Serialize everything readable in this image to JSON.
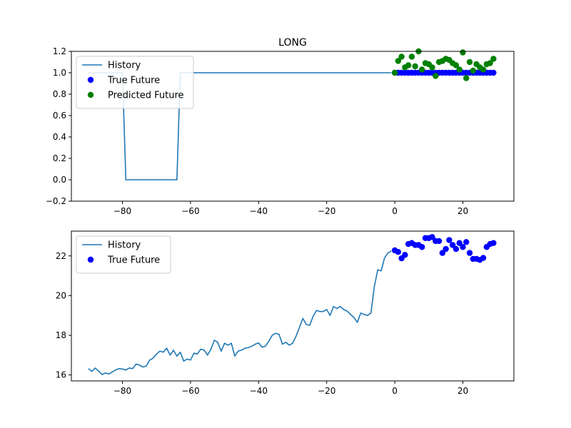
{
  "figure": {
    "title": "LONG"
  },
  "chart_data": [
    {
      "type": "line",
      "title": "LONG",
      "xlabel": "",
      "ylabel": "",
      "xlim": [
        -95,
        35
      ],
      "ylim": [
        -0.2,
        1.2
      ],
      "xticks": [
        -80,
        -60,
        -40,
        -20,
        0,
        20
      ],
      "yticks": [
        -0.2,
        0.0,
        0.2,
        0.4,
        0.6,
        0.8,
        1.0,
        1.2
      ],
      "ytick_labels": [
        "−0.2",
        "0.0",
        "0.2",
        "0.4",
        "0.6",
        "0.8",
        "1.0",
        "1.2"
      ],
      "xtick_labels": [
        "−80",
        "−60",
        "−40",
        "−20",
        "0",
        "20"
      ],
      "legend": {
        "placement": "upper-left",
        "entries": [
          {
            "label": "History",
            "kind": "line",
            "color": "#1f77b4"
          },
          {
            "label": "True Future",
            "kind": "marker",
            "color": "#0000ff"
          },
          {
            "label": "Predicted Future",
            "kind": "marker",
            "color": "#008000"
          }
        ]
      },
      "series": [
        {
          "name": "History",
          "kind": "line",
          "color": "#1f77b4",
          "x": [
            -90,
            -89,
            -88,
            -87,
            -86,
            -85,
            -84,
            -83,
            -82,
            -81,
            -80,
            -79,
            -78,
            -77,
            -76,
            -75,
            -74,
            -73,
            -72,
            -71,
            -70,
            -69,
            -68,
            -67,
            -66,
            -65,
            -64,
            -63,
            -62,
            -61,
            -60,
            -50,
            -40,
            -30,
            -20,
            -10,
            -1
          ],
          "y": [
            1,
            1,
            1,
            1,
            1,
            1,
            1,
            1,
            1,
            1,
            1,
            0,
            0,
            0,
            0,
            0,
            0,
            0,
            0,
            0,
            0,
            0,
            0,
            0,
            0,
            0,
            0,
            1,
            1,
            1,
            1,
            1,
            1,
            1,
            1,
            1,
            1
          ]
        },
        {
          "name": "True Future",
          "kind": "scatter",
          "color": "#0000ff",
          "x": [
            0,
            1,
            2,
            3,
            4,
            5,
            6,
            7,
            8,
            9,
            10,
            11,
            12,
            13,
            14,
            15,
            16,
            17,
            18,
            19,
            20,
            21,
            22,
            23,
            24,
            25,
            26,
            27,
            28,
            29
          ],
          "y": [
            1,
            1,
            1,
            1,
            1,
            1,
            1,
            1,
            1,
            1,
            1,
            1,
            1,
            1,
            1,
            1,
            1,
            1,
            1,
            1,
            1,
            1,
            1,
            1,
            1,
            1,
            1,
            1,
            1,
            1
          ]
        },
        {
          "name": "Predicted Future",
          "kind": "scatter",
          "color": "#008000",
          "x": [
            0,
            1,
            2,
            3,
            4,
            5,
            6,
            7,
            8,
            9,
            10,
            11,
            12,
            13,
            14,
            15,
            16,
            17,
            18,
            19,
            20,
            21,
            22,
            23,
            24,
            25,
            26,
            27,
            28,
            29
          ],
          "y": [
            1.0,
            1.11,
            1.15,
            1.05,
            1.07,
            1.15,
            1.06,
            1.2,
            1.03,
            1.09,
            1.08,
            1.05,
            0.97,
            1.1,
            1.11,
            1.13,
            1.12,
            1.09,
            1.07,
            1.03,
            1.19,
            0.95,
            1.1,
            1.02,
            1.08,
            1.05,
            1.03,
            1.08,
            1.09,
            1.13
          ]
        }
      ]
    },
    {
      "type": "line",
      "title": "",
      "xlabel": "",
      "ylabel": "",
      "xlim": [
        -95,
        35
      ],
      "ylim": [
        15.7,
        23.25
      ],
      "xticks": [
        -80,
        -60,
        -40,
        -20,
        0,
        20
      ],
      "yticks": [
        16,
        18,
        20,
        22
      ],
      "ytick_labels": [
        "16",
        "18",
        "20",
        "22"
      ],
      "xtick_labels": [
        "−80",
        "−60",
        "−40",
        "−20",
        "0",
        "20"
      ],
      "legend": {
        "placement": "upper-left",
        "entries": [
          {
            "label": "History",
            "kind": "line",
            "color": "#1f77b4"
          },
          {
            "label": "True Future",
            "kind": "marker",
            "color": "#0000ff"
          }
        ]
      },
      "series": [
        {
          "name": "History",
          "kind": "line",
          "color": "#1f77b4",
          "x": [
            -90,
            -89,
            -88,
            -87,
            -86,
            -85,
            -84,
            -83,
            -82,
            -81,
            -80,
            -79,
            -78,
            -77,
            -76,
            -75,
            -74,
            -73,
            -72,
            -71,
            -70,
            -69,
            -68,
            -67,
            -66,
            -65,
            -64,
            -63,
            -62,
            -61,
            -60,
            -59,
            -58,
            -57,
            -56,
            -55,
            -54,
            -53,
            -52,
            -51,
            -50,
            -49,
            -48,
            -47,
            -46,
            -45,
            -44,
            -43,
            -42,
            -41,
            -40,
            -39,
            -38,
            -37,
            -36,
            -35,
            -34,
            -33,
            -32,
            -31,
            -30,
            -29,
            -28,
            -27,
            -26,
            -25,
            -24,
            -23,
            -22,
            -21,
            -20,
            -19,
            -18,
            -17,
            -16,
            -15,
            -14,
            -13,
            -12,
            -11,
            -10,
            -9,
            -8,
            -7,
            -6,
            -5,
            -4,
            -3,
            -2,
            -1
          ],
          "y": [
            16.32,
            16.18,
            16.35,
            16.2,
            16.02,
            16.1,
            16.05,
            16.15,
            16.25,
            16.32,
            16.3,
            16.25,
            16.35,
            16.32,
            16.55,
            16.5,
            16.4,
            16.45,
            16.75,
            16.85,
            17.05,
            17.2,
            17.15,
            17.35,
            17.0,
            17.25,
            16.95,
            17.15,
            16.7,
            16.8,
            16.75,
            17.1,
            17.05,
            17.3,
            17.25,
            17.0,
            17.3,
            17.75,
            17.65,
            17.2,
            17.6,
            17.5,
            17.6,
            16.95,
            17.2,
            17.25,
            17.35,
            17.38,
            17.45,
            17.55,
            17.62,
            17.4,
            17.45,
            17.7,
            18.0,
            18.1,
            18.05,
            17.55,
            17.65,
            17.5,
            17.6,
            17.95,
            18.4,
            18.85,
            18.55,
            18.5,
            18.95,
            19.25,
            19.2,
            19.2,
            19.3,
            19.0,
            19.45,
            19.35,
            19.45,
            19.3,
            19.22,
            19.05,
            18.9,
            18.65,
            19.12,
            19.05,
            19.0,
            19.12,
            20.45,
            21.3,
            21.25,
            21.9,
            22.15,
            22.25
          ]
        },
        {
          "name": "True Future",
          "kind": "scatter",
          "color": "#0000ff",
          "x": [
            0,
            1,
            2,
            3,
            4,
            5,
            6,
            7,
            8,
            9,
            10,
            11,
            12,
            13,
            14,
            15,
            16,
            17,
            18,
            19,
            20,
            21,
            22,
            23,
            24,
            25,
            26,
            27,
            28,
            29
          ],
          "y": [
            22.28,
            22.2,
            21.88,
            22.05,
            22.6,
            22.65,
            22.55,
            22.55,
            22.45,
            22.9,
            22.9,
            22.95,
            22.75,
            22.75,
            22.15,
            22.35,
            22.8,
            22.55,
            22.35,
            22.65,
            22.45,
            22.7,
            22.15,
            21.85,
            21.85,
            21.8,
            21.9,
            22.45,
            22.6,
            22.65
          ]
        }
      ]
    }
  ]
}
